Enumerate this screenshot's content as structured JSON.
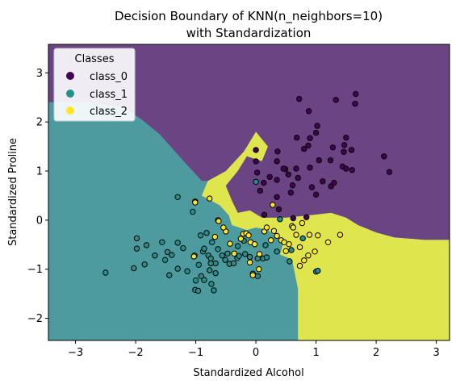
{
  "chart_data": {
    "type": "scatter",
    "title_line1": "Decision Boundary of KNN(n_neighbors=10)",
    "title_line2": "with Standardization",
    "xlabel": "Standardized Alcohol",
    "ylabel": "Standardized Proline",
    "xlim": [
      -3.45,
      3.22
    ],
    "ylim": [
      -2.45,
      3.58
    ],
    "xticks": [
      -3,
      -2,
      -1,
      0,
      1,
      2,
      3
    ],
    "yticks": [
      -2,
      -1,
      0,
      1,
      2,
      3
    ],
    "legend": {
      "title": "Classes",
      "placement": "top-left",
      "entries": [
        "class_0",
        "class_1",
        "class_2"
      ]
    },
    "colors": {
      "class_0": "#440154",
      "class_1": "#21918c",
      "class_2": "#fde725",
      "region_0": "#6b4484",
      "region_1": "#4d9b9f",
      "region_2": "#dfe54d"
    },
    "regions": [
      {
        "class": "class_1",
        "polygon": [
          [
            -3.45,
            -2.45
          ],
          [
            0.7,
            -2.45
          ],
          [
            0.7,
            -1.4
          ],
          [
            0.6,
            -0.8
          ],
          [
            0.4,
            -0.7
          ],
          [
            0.45,
            -0.5
          ],
          [
            0.3,
            -0.3
          ],
          [
            0.2,
            -0.2
          ],
          [
            0,
            -0.15
          ],
          [
            -0.15,
            -0.2
          ],
          [
            -0.4,
            -0.1
          ],
          [
            -0.45,
            0.1
          ],
          [
            -0.6,
            0.5
          ],
          [
            -0.9,
            0.8
          ],
          [
            -1.2,
            1.2
          ],
          [
            -1.6,
            1.75
          ],
          [
            -1.9,
            2.05
          ],
          [
            -2.2,
            2.3
          ],
          [
            -2.8,
            2.4
          ],
          [
            -3.45,
            2.4
          ]
        ]
      },
      {
        "class": "class_2",
        "polygon": [
          [
            0.7,
            -2.45
          ],
          [
            3.22,
            -2.45
          ],
          [
            3.22,
            -0.4
          ],
          [
            2.8,
            -0.4
          ],
          [
            2.3,
            -0.35
          ],
          [
            2.0,
            -0.25
          ],
          [
            1.7,
            -0.1
          ],
          [
            1.5,
            0.05
          ],
          [
            1.25,
            0.15
          ],
          [
            0.9,
            0.1
          ],
          [
            0.5,
            0.05
          ],
          [
            0.1,
            0.05
          ],
          [
            -0.1,
            0.2
          ],
          [
            -0.3,
            0.15
          ],
          [
            -0.4,
            0.4
          ],
          [
            -0.5,
            0.7
          ],
          [
            -0.3,
            1.0
          ],
          [
            -0.15,
            1.3
          ],
          [
            0.1,
            1.2
          ],
          [
            0.2,
            1.5
          ],
          [
            0.0,
            1.8
          ],
          [
            -0.2,
            1.4
          ],
          [
            -0.5,
            1.0
          ],
          [
            -0.8,
            0.8
          ],
          [
            -0.9,
            0.5
          ],
          [
            -0.6,
            0.3
          ],
          [
            -0.45,
            0.1
          ],
          [
            -0.4,
            -0.1
          ],
          [
            -0.15,
            -0.2
          ],
          [
            0,
            -0.15
          ],
          [
            0.2,
            -0.2
          ],
          [
            0.3,
            -0.3
          ],
          [
            0.45,
            -0.5
          ],
          [
            0.4,
            -0.7
          ],
          [
            0.6,
            -0.8
          ],
          [
            0.7,
            -1.4
          ]
        ]
      },
      {
        "class": "class_0",
        "polygon": [
          [
            -3.45,
            2.4
          ],
          [
            -2.8,
            2.4
          ],
          [
            -2.2,
            2.3
          ],
          [
            -1.9,
            2.05
          ],
          [
            -1.6,
            1.75
          ],
          [
            -1.2,
            1.2
          ],
          [
            -0.9,
            0.8
          ],
          [
            -0.8,
            0.8
          ],
          [
            -0.5,
            1.0
          ],
          [
            -0.2,
            1.4
          ],
          [
            0.0,
            1.8
          ],
          [
            0.2,
            1.5
          ],
          [
            0.1,
            1.2
          ],
          [
            -0.15,
            1.3
          ],
          [
            -0.3,
            1.0
          ],
          [
            -0.5,
            0.7
          ],
          [
            -0.4,
            0.4
          ],
          [
            -0.3,
            0.15
          ],
          [
            -0.1,
            0.2
          ],
          [
            0.1,
            0.05
          ],
          [
            0.5,
            0.05
          ],
          [
            0.9,
            0.1
          ],
          [
            1.25,
            0.15
          ],
          [
            1.5,
            0.05
          ],
          [
            1.7,
            -0.1
          ],
          [
            2.0,
            -0.25
          ],
          [
            2.3,
            -0.35
          ],
          [
            2.8,
            -0.4
          ],
          [
            3.22,
            -0.4
          ],
          [
            3.22,
            3.58
          ],
          [
            -3.45,
            3.58
          ]
        ]
      }
    ],
    "series": [
      {
        "name": "class_0",
        "points": [
          [
            0.72,
            2.47
          ],
          [
            1.33,
            2.45
          ],
          [
            1.66,
            2.57
          ],
          [
            1.65,
            2.37
          ],
          [
            0.88,
            2.22
          ],
          [
            1.02,
            1.92
          ],
          [
            0.9,
            1.67
          ],
          [
            0.87,
            1.52
          ],
          [
            0.68,
            1.68
          ],
          [
            0.8,
            1.45
          ],
          [
            1.5,
            1.68
          ],
          [
            1.47,
            1.53
          ],
          [
            0.36,
            1.4
          ],
          [
            0.35,
            1.2
          ],
          [
            0.49,
            1.04
          ],
          [
            0.67,
            1.05
          ],
          [
            0.54,
            0.93
          ],
          [
            0.7,
            0.86
          ],
          [
            0.9,
            1.07
          ],
          [
            1.05,
            1.22
          ],
          [
            1.11,
            0.79
          ],
          [
            0.0,
            1.43
          ],
          [
            0.0,
            1.2
          ],
          [
            0.02,
            0.97
          ],
          [
            0.13,
            0.76
          ],
          [
            0.23,
            0.88
          ],
          [
            0.35,
            0.82
          ],
          [
            0.46,
            1.05
          ],
          [
            0.58,
            0.56
          ],
          [
            0.61,
            0.71
          ],
          [
            0.93,
            0.67
          ],
          [
            1.0,
            0.52
          ],
          [
            1.24,
            1.22
          ],
          [
            1.46,
            1.39
          ],
          [
            1.59,
            1.43
          ],
          [
            1.6,
            1.02
          ],
          [
            1.25,
            0.69
          ],
          [
            0.38,
            0.22
          ],
          [
            0.14,
            0.11
          ],
          [
            0.62,
            0.04
          ],
          [
            0.84,
            0.06
          ],
          [
            1.3,
            0.76
          ],
          [
            1.44,
            1.09
          ],
          [
            1.5,
            1.05
          ],
          [
            2.13,
            1.3
          ],
          [
            2.22,
            0.98
          ],
          [
            1.0,
            1.78
          ],
          [
            1.28,
            1.48
          ],
          [
            0.07,
            0.6
          ],
          [
            0.35,
            0.47
          ]
        ]
      },
      {
        "name": "class_1",
        "points": [
          [
            -2.5,
            -1.07
          ],
          [
            -1.98,
            -0.37
          ],
          [
            -1.98,
            -0.58
          ],
          [
            -2.03,
            -0.98
          ],
          [
            -1.82,
            -0.51
          ],
          [
            -1.85,
            -0.9
          ],
          [
            -1.68,
            -0.72
          ],
          [
            -1.56,
            -0.45
          ],
          [
            -1.51,
            -0.81
          ],
          [
            -1.47,
            -0.65
          ],
          [
            -1.44,
            -1.12
          ],
          [
            -1.4,
            -0.71
          ],
          [
            -1.3,
            -0.99
          ],
          [
            -1.3,
            -0.46
          ],
          [
            -1.21,
            -0.57
          ],
          [
            -1.14,
            -1.04
          ],
          [
            -1.0,
            -1.23
          ],
          [
            -0.95,
            -0.91
          ],
          [
            -0.91,
            -1.14
          ],
          [
            -0.88,
            -0.64
          ],
          [
            -0.86,
            -1.22
          ],
          [
            -0.79,
            -0.72
          ],
          [
            -0.74,
            -1.3
          ],
          [
            -0.77,
            -1.02
          ],
          [
            -0.73,
            -0.45
          ],
          [
            -0.67,
            -0.88
          ],
          [
            -0.63,
            -0.59
          ],
          [
            -0.56,
            -0.72
          ],
          [
            -0.51,
            -0.81
          ],
          [
            -0.44,
            -0.89
          ],
          [
            -0.37,
            -0.88
          ],
          [
            -0.31,
            -0.77
          ],
          [
            -0.28,
            -0.73
          ],
          [
            -0.2,
            -0.42
          ],
          [
            -0.18,
            -0.69
          ],
          [
            -0.1,
            -0.75
          ],
          [
            -0.05,
            -1.09
          ],
          [
            0.03,
            -0.78
          ],
          [
            0.12,
            -0.78
          ],
          [
            0.16,
            -0.51
          ],
          [
            0.18,
            -0.76
          ],
          [
            0.35,
            -0.64
          ],
          [
            0.56,
            -0.84
          ],
          [
            0.59,
            -0.61
          ],
          [
            0.78,
            -0.37
          ],
          [
            1.0,
            -1.05
          ],
          [
            1.03,
            -1.03
          ],
          [
            -0.82,
            -0.26
          ],
          [
            -0.86,
            -0.58
          ],
          [
            -1.01,
            -1.42
          ],
          [
            -0.7,
            -1.43
          ],
          [
            -0.47,
            -0.68
          ],
          [
            -0.3,
            -0.53
          ],
          [
            -1.03,
            -0.74
          ],
          [
            -0.96,
            -1.44
          ],
          [
            -1.02,
            -0.72
          ],
          [
            -0.75,
            -0.88
          ],
          [
            -1.3,
            0.47
          ],
          [
            -1.01,
            0.38
          ],
          [
            -1.05,
            0.17
          ],
          [
            -0.92,
            -0.31
          ],
          [
            -0.63,
            0.0
          ],
          [
            -0.67,
            -1.08
          ],
          [
            0.03,
            -1.14
          ],
          [
            -0.75,
            -0.78
          ],
          [
            0.4,
            0.02
          ],
          [
            0.0,
            0.78
          ]
        ]
      },
      {
        "name": "class_2",
        "points": [
          [
            -1.01,
            0.36
          ],
          [
            -0.77,
            0.44
          ],
          [
            -0.62,
            -0.02
          ],
          [
            -0.5,
            -0.23
          ],
          [
            -0.43,
            -0.48
          ],
          [
            -0.36,
            -0.68
          ],
          [
            -0.25,
            -0.38
          ],
          [
            -0.21,
            -0.28
          ],
          [
            -0.16,
            -0.27
          ],
          [
            -0.12,
            -0.31
          ],
          [
            -0.09,
            -0.45
          ],
          [
            -0.02,
            -0.49
          ],
          [
            0.06,
            -0.69
          ],
          [
            0.14,
            -0.23
          ],
          [
            0.18,
            -0.15
          ],
          [
            0.25,
            -0.41
          ],
          [
            0.3,
            -0.22
          ],
          [
            0.35,
            -0.32
          ],
          [
            0.42,
            -0.41
          ],
          [
            0.47,
            -0.45
          ],
          [
            0.5,
            -0.63
          ],
          [
            0.55,
            -0.49
          ],
          [
            0.6,
            -0.12
          ],
          [
            0.67,
            -0.3
          ],
          [
            0.73,
            -0.55
          ],
          [
            0.77,
            -0.06
          ],
          [
            0.8,
            -0.82
          ],
          [
            0.87,
            -0.72
          ],
          [
            0.89,
            -0.3
          ],
          [
            0.98,
            -0.64
          ],
          [
            1.03,
            -0.31
          ],
          [
            1.2,
            -0.45
          ],
          [
            1.4,
            -0.3
          ],
          [
            -1.03,
            -0.74
          ],
          [
            0.28,
            0.31
          ],
          [
            -0.1,
            -0.86
          ],
          [
            -0.05,
            -1.12
          ],
          [
            0.05,
            -1.0
          ],
          [
            0.62,
            -0.15
          ],
          [
            -0.54,
            -0.15
          ],
          [
            -0.68,
            -0.34
          ],
          [
            0.73,
            -0.93
          ]
        ]
      }
    ]
  }
}
